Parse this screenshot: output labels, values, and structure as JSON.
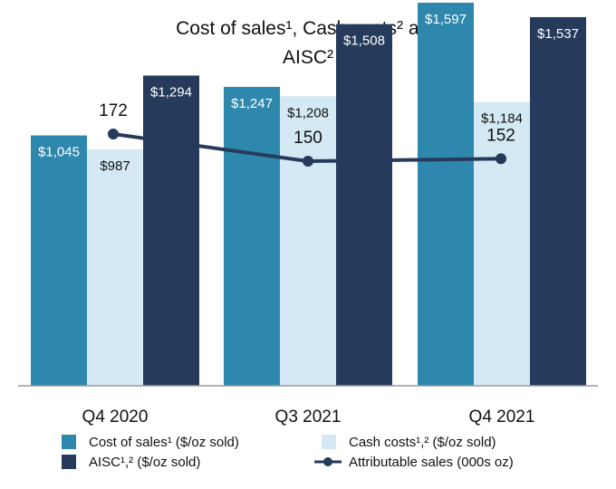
{
  "chart_data": {
    "type": "bar",
    "title_lines": [
      "Cost of sales¹, Cash costs² and",
      "AISC²"
    ],
    "categories": [
      "Q4 2020",
      "Q3 2021",
      "Q4 2021"
    ],
    "series": [
      {
        "name": "Cost of sales¹ ($/oz sold)",
        "values": [
          1045,
          1247,
          1597
        ],
        "labels": [
          "$1,045",
          "$1,247",
          "$1,597"
        ],
        "color": "#2e88ad",
        "label_color": "#ffffff"
      },
      {
        "name": "Cash costs¹,² ($/oz sold)",
        "values": [
          987,
          1208,
          1184
        ],
        "labels": [
          "$987",
          "$1,208",
          "$1,184"
        ],
        "color": "#d4e9f4",
        "label_color": "#111111"
      },
      {
        "name": "AISC¹,² ($/oz sold)",
        "values": [
          1294,
          1508,
          1537
        ],
        "labels": [
          "$1,294",
          "$1,508",
          "$1,537"
        ],
        "color": "#263b5b",
        "label_color": "#ffffff"
      }
    ],
    "line": {
      "name": "Attributable sales (000s oz)",
      "values": [
        172,
        150,
        152
      ],
      "labels": [
        "172",
        "150",
        "152"
      ],
      "color": "#263b5b"
    },
    "legend": "bottom",
    "ylim_bars": [
      700,
      1600
    ]
  }
}
